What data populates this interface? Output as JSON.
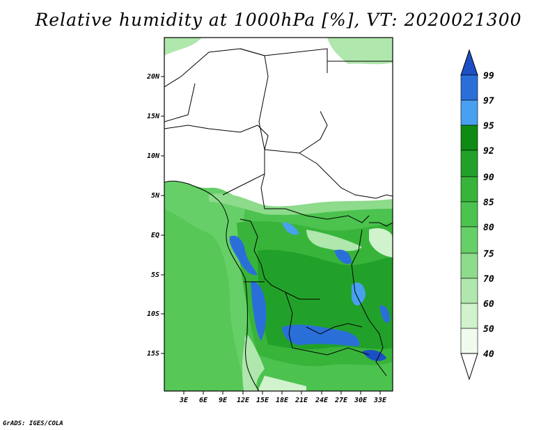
{
  "title": "Relative humidity at 1000hPa [%], VT: 2020021300",
  "footer": "GrADS: IGES/COLA",
  "map": {
    "lon_ticks": [
      "3E",
      "6E",
      "9E",
      "12E",
      "15E",
      "18E",
      "21E",
      "24E",
      "27E",
      "30E",
      "33E"
    ],
    "lat_ticks": [
      "20N",
      "15N",
      "10N",
      "5N",
      "EQ",
      "5S",
      "10S",
      "15S"
    ]
  },
  "colorbar": {
    "levels": [
      "99",
      "97",
      "95",
      "92",
      "90",
      "85",
      "80",
      "75",
      "70",
      "60",
      "50",
      "40"
    ],
    "colors": [
      "#1c4fc4",
      "#2a6fd8",
      "#4aa0f0",
      "#0f8a12",
      "#22a12a",
      "#39b43a",
      "#4cc24f",
      "#67cf68",
      "#8ddb8b",
      "#afe7ad",
      "#d0f2cd",
      "#f0fbee",
      "#ffffff"
    ]
  }
}
